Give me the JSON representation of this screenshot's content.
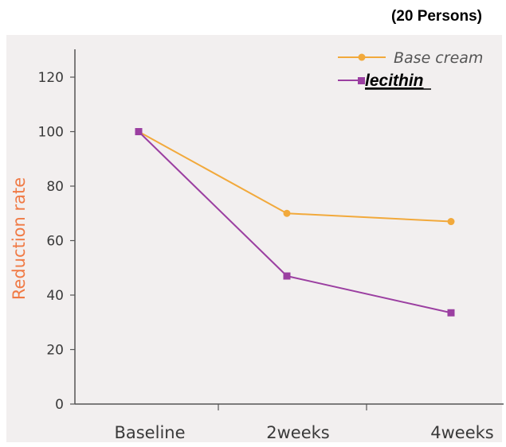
{
  "header": {
    "note": "(20 Persons)"
  },
  "chart_data": {
    "type": "line",
    "categories": [
      "Baseline",
      "2weeks",
      "4weeks"
    ],
    "series": [
      {
        "name": "Base cream",
        "values": [
          100,
          70,
          67
        ],
        "color": "#f2a93b",
        "marker": "circle"
      },
      {
        "name": "lecithin",
        "values": [
          100,
          47,
          33.5
        ],
        "color": "#9b3fa1",
        "marker": "square"
      }
    ],
    "ylabel": "Reduction rate",
    "xlabel": "",
    "ylim": [
      0,
      130
    ],
    "yticks": [
      0,
      20,
      40,
      60,
      80,
      100,
      120
    ],
    "grid": false,
    "legend_position": "top-right",
    "colors": {
      "ylabel": "#f07a45",
      "axis": "#555555",
      "background": "#f2efef"
    }
  }
}
